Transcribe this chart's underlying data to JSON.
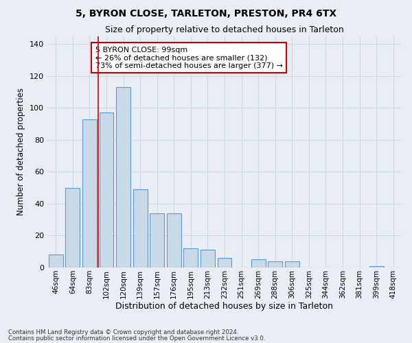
{
  "title1": "5, BYRON CLOSE, TARLETON, PRESTON, PR4 6TX",
  "title2": "Size of property relative to detached houses in Tarleton",
  "xlabel": "Distribution of detached houses by size in Tarleton",
  "ylabel": "Number of detached properties",
  "categories": [
    "46sqm",
    "64sqm",
    "83sqm",
    "102sqm",
    "120sqm",
    "139sqm",
    "157sqm",
    "176sqm",
    "195sqm",
    "213sqm",
    "232sqm",
    "251sqm",
    "269sqm",
    "288sqm",
    "306sqm",
    "325sqm",
    "344sqm",
    "362sqm",
    "381sqm",
    "399sqm",
    "418sqm"
  ],
  "values": [
    8,
    50,
    93,
    97,
    113,
    49,
    34,
    34,
    12,
    11,
    6,
    0,
    5,
    4,
    4,
    0,
    0,
    0,
    0,
    1,
    0
  ],
  "bar_color": "#c8d9e8",
  "bar_edge_color": "#5b9bd5",
  "vline_color": "#cc0000",
  "vline_index": 3,
  "annotation_text": "5 BYRON CLOSE: 99sqm\n← 26% of detached houses are smaller (132)\n73% of semi-detached houses are larger (377) →",
  "annotation_box_color": "#ffffff",
  "annotation_box_edge": "#cc0000",
  "grid_color": "#d0d8e8",
  "background_color": "#e8eef4",
  "footer1": "Contains HM Land Registry data © Crown copyright and database right 2024.",
  "footer2": "Contains public sector information licensed under the Open Government Licence v3.0.",
  "ylim": [
    0,
    145
  ],
  "yticks": [
    0,
    20,
    40,
    60,
    80,
    100,
    120,
    140
  ]
}
